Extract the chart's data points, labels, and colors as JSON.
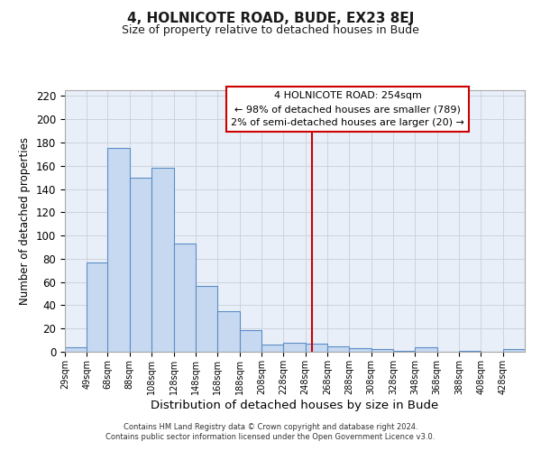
{
  "title": "4, HOLNICOTE ROAD, BUDE, EX23 8EJ",
  "subtitle": "Size of property relative to detached houses in Bude",
  "xlabel": "Distribution of detached houses by size in Bude",
  "ylabel": "Number of detached properties",
  "bin_starts": [
    29,
    49,
    68,
    88,
    108,
    128,
    148,
    168,
    188,
    208,
    228,
    248,
    268,
    288,
    308,
    328,
    348,
    368,
    388,
    408,
    428
  ],
  "bin_labels": [
    "29sqm",
    "49sqm",
    "68sqm",
    "88sqm",
    "108sqm",
    "128sqm",
    "148sqm",
    "168sqm",
    "188sqm",
    "208sqm",
    "228sqm",
    "248sqm",
    "268sqm",
    "288sqm",
    "308sqm",
    "328sqm",
    "348sqm",
    "368sqm",
    "388sqm",
    "408sqm",
    "428sqm"
  ],
  "bar_values": [
    4,
    77,
    175,
    150,
    158,
    93,
    57,
    35,
    19,
    6,
    8,
    7,
    5,
    3,
    2,
    1,
    4,
    0,
    1,
    0,
    2
  ],
  "bar_color": "#c6d9f0",
  "bar_edge_color": "#5b8dc8",
  "vline_x": 254,
  "vline_color": "#cc0000",
  "ylim": [
    0,
    225
  ],
  "yticks": [
    0,
    20,
    40,
    60,
    80,
    100,
    120,
    140,
    160,
    180,
    200,
    220
  ],
  "grid_color": "#c8cfd8",
  "bg_color": "#e8eff8",
  "annotation_title": "4 HOLNICOTE ROAD: 254sqm",
  "annotation_line1": "← 98% of detached houses are smaller (789)",
  "annotation_line2": "2% of semi-detached houses are larger (20) →",
  "annotation_box_color": "#ffffff",
  "annotation_border_color": "#cc0000",
  "footer1": "Contains HM Land Registry data © Crown copyright and database right 2024.",
  "footer2": "Contains public sector information licensed under the Open Government Licence v3.0."
}
